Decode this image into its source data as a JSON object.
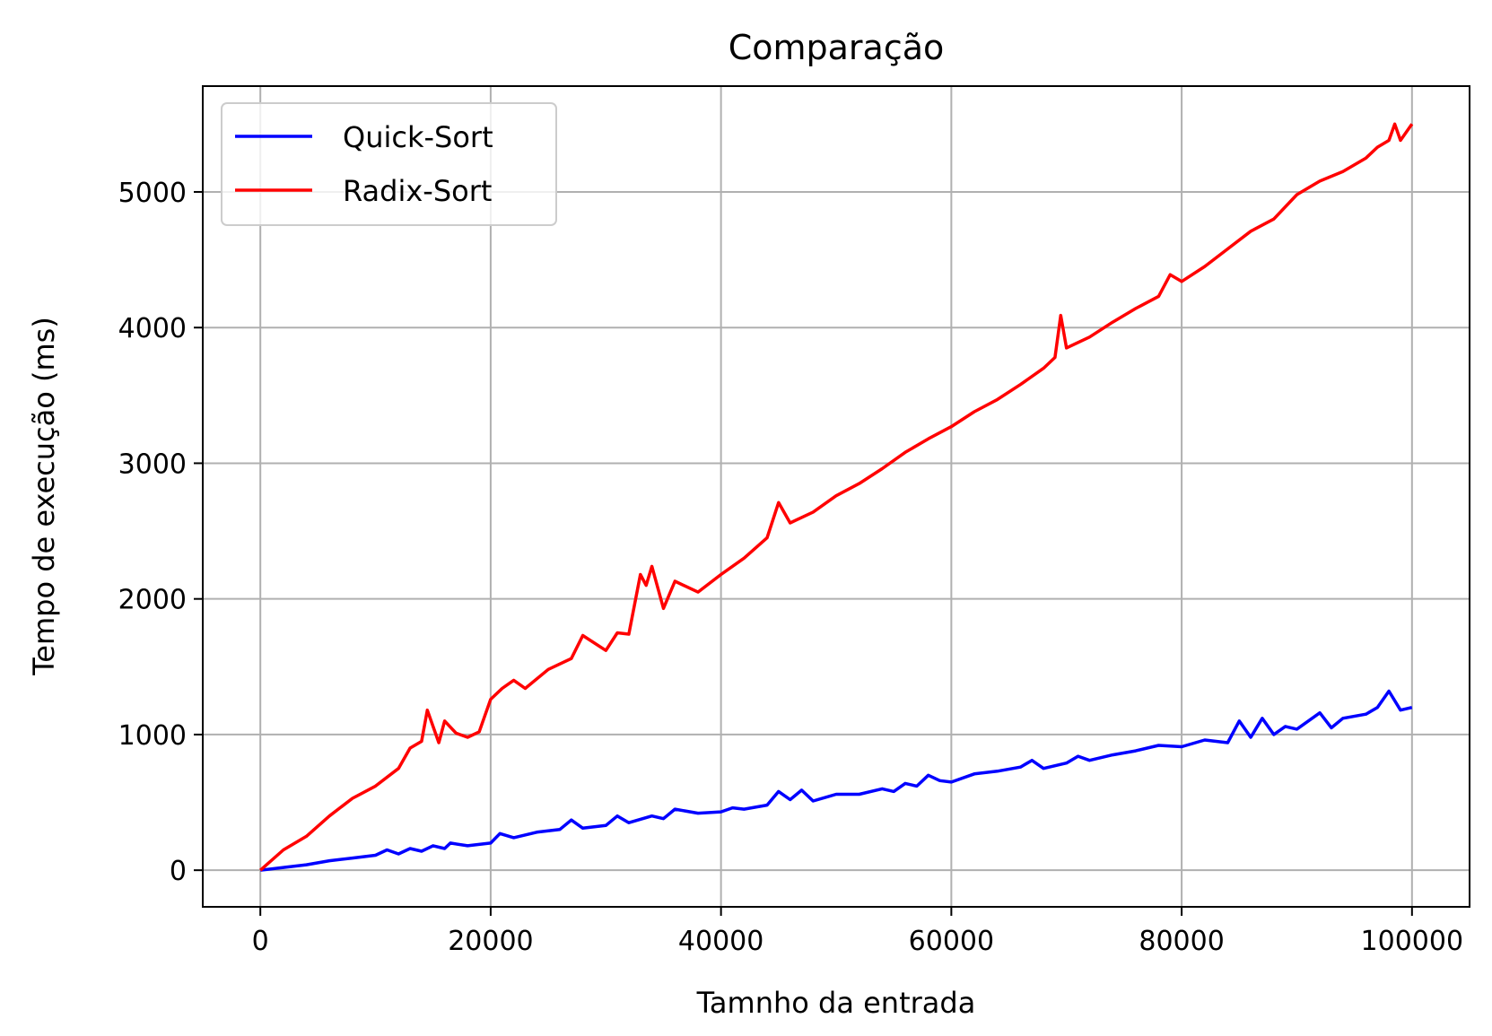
{
  "chart_data": {
    "type": "line",
    "title": "Comparação",
    "xlabel": "Tamnho da entrada",
    "ylabel": "Tempo de execução (ms)",
    "xlim": [
      -5000,
      105000
    ],
    "ylim": [
      -270,
      5780
    ],
    "xticks": [
      0,
      20000,
      40000,
      60000,
      80000,
      100000
    ],
    "yticks": [
      0,
      1000,
      2000,
      3000,
      4000,
      5000
    ],
    "grid": true,
    "legend_position": "top-left",
    "series": [
      {
        "name": "Quick-Sort",
        "color": "#0000ff",
        "x": [
          0,
          2000,
          4000,
          6000,
          8000,
          10000,
          11000,
          12000,
          13000,
          14000,
          15000,
          16000,
          16500,
          18000,
          20000,
          20800,
          22000,
          24000,
          26000,
          27000,
          28000,
          30000,
          31000,
          32000,
          34000,
          35000,
          36000,
          38000,
          40000,
          41000,
          42000,
          44000,
          45000,
          46000,
          47000,
          48000,
          50000,
          52000,
          54000,
          55000,
          56000,
          57000,
          58000,
          59000,
          60000,
          62000,
          64000,
          66000,
          67000,
          68000,
          70000,
          71000,
          72000,
          74000,
          76000,
          78000,
          80000,
          82000,
          84000,
          85000,
          86000,
          87000,
          88000,
          89000,
          90000,
          92000,
          93000,
          94000,
          96000,
          97000,
          98000,
          99000,
          100000
        ],
        "y": [
          0,
          20,
          40,
          70,
          90,
          110,
          150,
          120,
          160,
          140,
          180,
          160,
          200,
          180,
          200,
          270,
          240,
          280,
          300,
          370,
          310,
          330,
          400,
          350,
          400,
          380,
          450,
          420,
          430,
          460,
          450,
          480,
          580,
          520,
          590,
          510,
          560,
          560,
          600,
          580,
          640,
          620,
          700,
          660,
          650,
          710,
          730,
          760,
          810,
          750,
          790,
          840,
          810,
          850,
          880,
          920,
          910,
          960,
          940,
          1100,
          980,
          1120,
          1000,
          1060,
          1040,
          1160,
          1050,
          1120,
          1150,
          1200,
          1320,
          1180,
          1200
        ]
      },
      {
        "name": "Radix-Sort",
        "color": "#ff0000",
        "x": [
          0,
          2000,
          4000,
          6000,
          8000,
          10000,
          12000,
          13000,
          14000,
          14500,
          15500,
          16000,
          17000,
          18000,
          19000,
          20000,
          21000,
          22000,
          23000,
          25000,
          27000,
          28000,
          30000,
          31000,
          32000,
          33000,
          33500,
          34000,
          35000,
          36000,
          38000,
          40000,
          42000,
          44000,
          45000,
          46000,
          48000,
          50000,
          52000,
          54000,
          56000,
          58000,
          60000,
          62000,
          64000,
          66000,
          68000,
          69000,
          69500,
          70000,
          72000,
          74000,
          76000,
          78000,
          79000,
          80000,
          82000,
          84000,
          86000,
          88000,
          90000,
          92000,
          94000,
          96000,
          97000,
          98000,
          98500,
          99000,
          100000
        ],
        "y": [
          0,
          150,
          250,
          400,
          530,
          620,
          750,
          900,
          950,
          1180,
          940,
          1100,
          1010,
          980,
          1020,
          1260,
          1340,
          1400,
          1340,
          1480,
          1560,
          1730,
          1620,
          1750,
          1740,
          2180,
          2100,
          2240,
          1930,
          2130,
          2050,
          2180,
          2300,
          2450,
          2710,
          2560,
          2640,
          2760,
          2850,
          2960,
          3080,
          3180,
          3270,
          3380,
          3470,
          3580,
          3700,
          3780,
          4090,
          3850,
          3930,
          4040,
          4140,
          4230,
          4390,
          4340,
          4450,
          4580,
          4710,
          4800,
          4980,
          5080,
          5150,
          5250,
          5330,
          5380,
          5500,
          5380,
          5500
        ]
      }
    ]
  }
}
